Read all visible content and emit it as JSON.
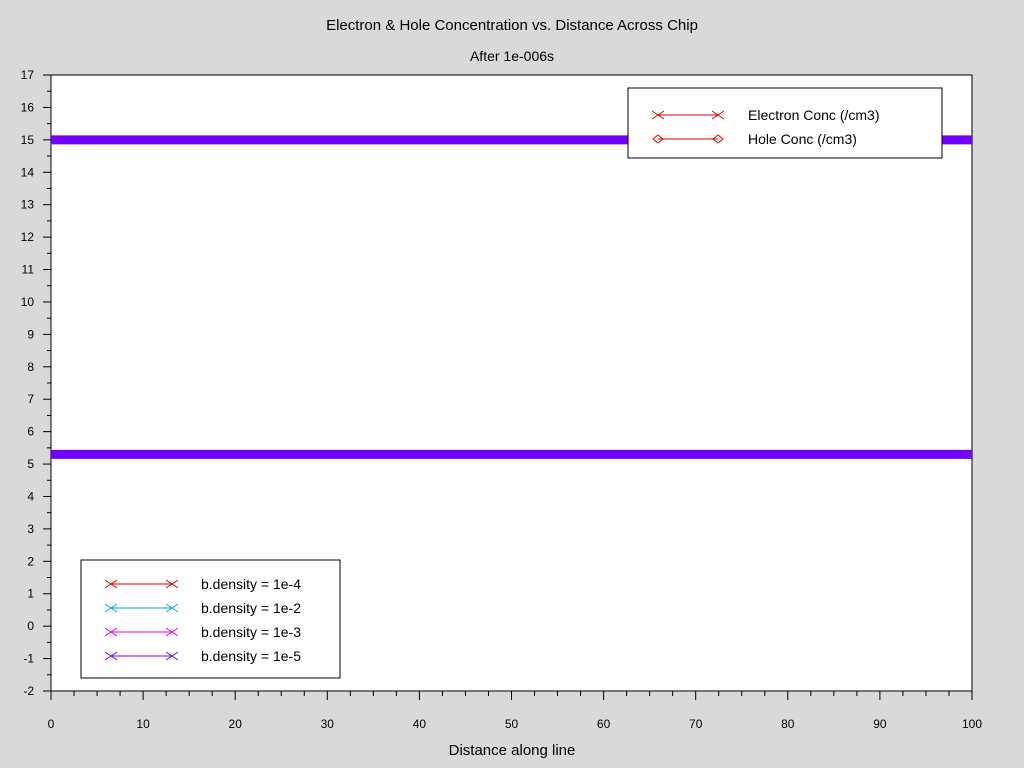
{
  "chart_data": {
    "type": "line",
    "title": "Electron & Hole Concentration vs. Distance Across Chip",
    "subtitle": "After 1e-006s",
    "xlabel": "Distance along line",
    "ylabel": "",
    "xlim": [
      0,
      100
    ],
    "ylim": [
      -2,
      17
    ],
    "xticks": [
      0,
      10,
      20,
      30,
      40,
      50,
      60,
      70,
      80,
      90,
      100
    ],
    "yticks": [
      -2,
      -1,
      0,
      1,
      2,
      3,
      4,
      5,
      6,
      7,
      8,
      9,
      10,
      11,
      12,
      13,
      14,
      15,
      16,
      17
    ],
    "grid": false,
    "series": [
      {
        "name": "b.density = 1e-5",
        "color": "#7000ff",
        "x": [
          0,
          100
        ],
        "y": [
          15.0,
          15.0
        ]
      },
      {
        "name": "b.density = 1e-5",
        "color": "#7000ff",
        "x": [
          0,
          100
        ],
        "y": [
          5.3,
          5.3
        ]
      }
    ],
    "legend_type": {
      "placement": "top-right",
      "entries": [
        {
          "label": "Electron Conc (/cm3)",
          "color": "#e00000",
          "marker": "x"
        },
        {
          "label": "Hole Conc (/cm3)",
          "color": "#e00000",
          "marker": "diamond"
        }
      ]
    },
    "legend_density": {
      "placement": "bottom-left",
      "entries": [
        {
          "label": "b.density = 1e-4",
          "color": "#e00000",
          "marker": "x"
        },
        {
          "label": "b.density = 1e-2",
          "color": "#00a6e6",
          "marker": "x"
        },
        {
          "label": "b.density = 1e-3",
          "color": "#e600e6",
          "marker": "x"
        },
        {
          "label": "b.density = 1e-5",
          "color": "#7000ff",
          "marker": "x"
        }
      ]
    }
  }
}
